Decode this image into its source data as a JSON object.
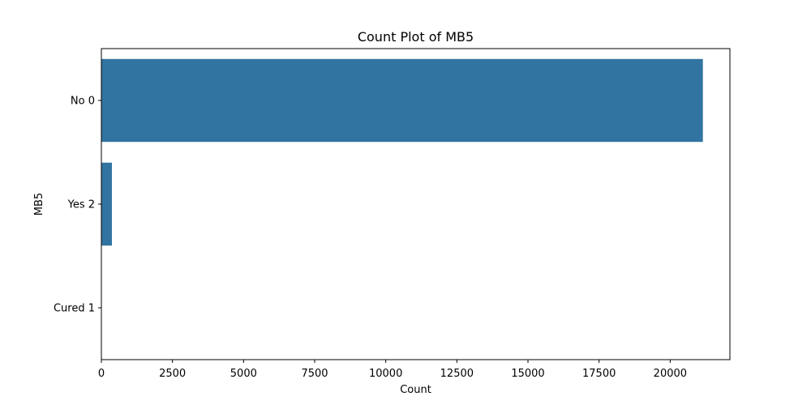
{
  "chart_data": {
    "type": "bar",
    "orientation": "horizontal",
    "title": "Count Plot of MB5",
    "xlabel": "Count",
    "ylabel": "MB5",
    "categories": [
      "No 0",
      "Yes 2",
      "Cured 1"
    ],
    "values": [
      21150,
      370,
      0
    ],
    "xlim": [
      0,
      22100
    ],
    "xticks": [
      0,
      2500,
      5000,
      7500,
      10000,
      12500,
      15000,
      17500,
      20000
    ],
    "xtick_labels": [
      "0",
      "2500",
      "5000",
      "7500",
      "10000",
      "12500",
      "15000",
      "17500",
      "20000"
    ],
    "grid": false,
    "legend": "none",
    "bar_color": "#3274a1"
  }
}
